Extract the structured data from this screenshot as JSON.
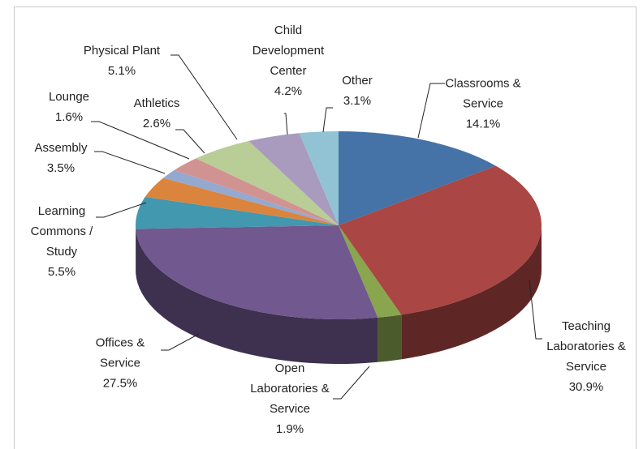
{
  "chart_data": {
    "type": "pie",
    "categories": [
      "Classrooms & Service",
      "Teaching Laboratories & Service",
      "Open Laboratories & Service",
      "Offices & Service",
      "Learning Commons / Study",
      "Assembly",
      "Lounge",
      "Athletics",
      "Physical Plant",
      "Child Development Center",
      "Other"
    ],
    "values": [
      14.1,
      30.9,
      1.9,
      27.5,
      5.5,
      3.5,
      1.6,
      2.6,
      5.1,
      4.2,
      3.1
    ],
    "value_labels": [
      "14.1%",
      "30.9%",
      "1.9%",
      "27.5%",
      "5.5%",
      "3.5%",
      "1.6%",
      "2.6%",
      "5.1%",
      "4.2%",
      "3.1%"
    ],
    "colors": [
      "#4572a7",
      "#aa4643",
      "#89a54e",
      "#71588f",
      "#4198af",
      "#db843d",
      "#93a9cf",
      "#d19392",
      "#b9cd96",
      "#a99bbd",
      "#92c3d5"
    ]
  }
}
